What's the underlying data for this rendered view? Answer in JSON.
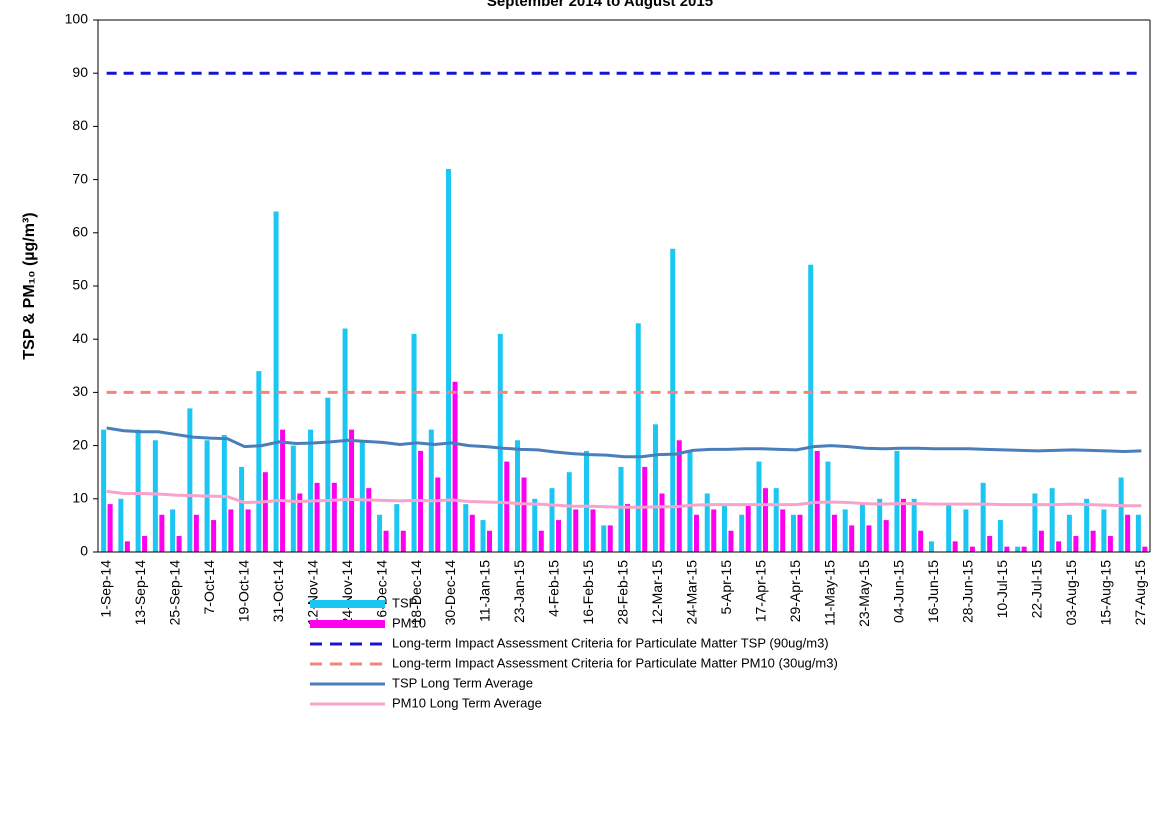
{
  "chart_data": {
    "type": "bar",
    "title": "September 2014 to August 2015",
    "y_label": "TSP & PM₁₀ (µg/m³)",
    "categories": [
      "1-Sep-14",
      null,
      "13-Sep-14",
      null,
      "25-Sep-14",
      null,
      "7-Oct-14",
      null,
      "19-Oct-14",
      null,
      "31-Oct-14",
      null,
      "12-Nov-14",
      null,
      "24-Nov-14",
      null,
      "6-Dec-14",
      null,
      "18-Dec-14",
      null,
      "30-Dec-14",
      null,
      "11-Jan-15",
      null,
      "23-Jan-15",
      null,
      "4-Feb-15",
      null,
      "16-Feb-15",
      null,
      "28-Feb-15",
      null,
      "12-Mar-15",
      null,
      "24-Mar-15",
      null,
      "5-Apr-15",
      null,
      "17-Apr-15",
      null,
      "29-Apr-15",
      null,
      "11-May-15",
      null,
      "23-May-15",
      null,
      "04-Jun-15",
      null,
      "16-Jun-15",
      null,
      "28-Jun-15",
      null,
      "10-Jul-15",
      null,
      "22-Jul-15",
      null,
      "03-Aug-15",
      null,
      "15-Aug-15",
      null,
      "27-Aug-15"
    ],
    "ylim": [
      0,
      100
    ],
    "yticks": [
      0,
      10,
      20,
      30,
      40,
      50,
      60,
      70,
      80,
      90,
      100
    ],
    "grid": false,
    "legend": "bottom",
    "series": [
      {
        "name": "TSP",
        "type": "bar",
        "color": "#1cc6f2",
        "values": [
          23,
          10,
          23,
          21,
          8,
          27,
          21,
          22,
          16,
          34,
          64,
          20,
          23,
          29,
          42,
          21,
          7,
          9,
          41,
          23,
          72,
          9,
          6,
          41,
          21,
          10,
          12,
          15,
          19,
          5,
          16,
          43,
          24,
          57,
          19,
          11,
          9,
          7,
          17,
          12,
          7,
          54,
          17,
          8,
          9,
          10,
          19,
          10,
          2,
          9,
          8,
          13,
          6,
          1,
          11,
          12,
          7,
          10,
          8,
          14,
          7
        ]
      },
      {
        "name": "PM10",
        "type": "bar",
        "color": "#ff00ee",
        "values": [
          9,
          2,
          3,
          7,
          3,
          7,
          6,
          8,
          8,
          15,
          23,
          11,
          13,
          13,
          23,
          12,
          4,
          4,
          19,
          14,
          32,
          7,
          4,
          17,
          14,
          4,
          6,
          8,
          8,
          5,
          9,
          16,
          11,
          21,
          7,
          8,
          4,
          9,
          12,
          8,
          7,
          19,
          7,
          5,
          5,
          6,
          10,
          4,
          0,
          2,
          1,
          3,
          1,
          1,
          4,
          2,
          3,
          4,
          3,
          7,
          1
        ]
      },
      {
        "name": "Long-term Impact Assessment Criteria for Particulate Matter TSP (90ug/m3)",
        "type": "line",
        "dash": true,
        "color": "#1414d2",
        "values": [
          90,
          90,
          90,
          90,
          90,
          90,
          90,
          90,
          90,
          90,
          90,
          90,
          90,
          90,
          90,
          90,
          90,
          90,
          90,
          90,
          90,
          90,
          90,
          90,
          90,
          90,
          90,
          90,
          90,
          90,
          90,
          90,
          90,
          90,
          90,
          90,
          90,
          90,
          90,
          90,
          90,
          90,
          90,
          90,
          90,
          90,
          90,
          90,
          90,
          90,
          90,
          90,
          90,
          90,
          90,
          90,
          90,
          90,
          90,
          90,
          90
        ]
      },
      {
        "name": "Long-term Impact Assessment Criteria for Particulate Matter PM10 (30ug/m3)",
        "type": "line",
        "dash": true,
        "color": "#f4857a",
        "values": [
          30,
          30,
          30,
          30,
          30,
          30,
          30,
          30,
          30,
          30,
          30,
          30,
          30,
          30,
          30,
          30,
          30,
          30,
          30,
          30,
          30,
          30,
          30,
          30,
          30,
          30,
          30,
          30,
          30,
          30,
          30,
          30,
          30,
          30,
          30,
          30,
          30,
          30,
          30,
          30,
          30,
          30,
          30,
          30,
          30,
          30,
          30,
          30,
          30,
          30,
          30,
          30,
          30,
          30,
          30,
          30,
          30,
          30,
          30,
          30,
          30
        ]
      },
      {
        "name": "TSP Long Term Average",
        "type": "line",
        "dash": false,
        "color": "#4a7ebb",
        "values": [
          23.3,
          22.8,
          22.6,
          22.6,
          22.1,
          21.6,
          21.4,
          21.3,
          19.8,
          20.0,
          20.7,
          20.4,
          20.5,
          20.7,
          21.0,
          20.8,
          20.6,
          20.2,
          20.5,
          20.2,
          20.5,
          20.0,
          19.8,
          19.5,
          19.3,
          19.2,
          18.8,
          18.5,
          18.3,
          18.2,
          17.9,
          17.9,
          18.3,
          18.4,
          19.1,
          19.3,
          19.3,
          19.4,
          19.4,
          19.3,
          19.2,
          19.8,
          20.0,
          19.8,
          19.5,
          19.4,
          19.5,
          19.5,
          19.4,
          19.4,
          19.4,
          19.3,
          19.2,
          19.1,
          19.0,
          19.1,
          19.2,
          19.1,
          19.0,
          18.9,
          19.0
        ]
      },
      {
        "name": "PM10 Long Term Average",
        "type": "line",
        "dash": false,
        "color": "#f9a3cc",
        "values": [
          11.4,
          11.0,
          11.0,
          10.9,
          10.7,
          10.6,
          10.5,
          10.4,
          9.3,
          9.4,
          9.7,
          9.5,
          9.6,
          9.7,
          9.9,
          9.8,
          9.7,
          9.6,
          9.7,
          9.6,
          9.8,
          9.5,
          9.4,
          9.3,
          9.1,
          9.0,
          8.8,
          8.6,
          8.6,
          8.5,
          8.4,
          8.4,
          8.5,
          8.5,
          8.8,
          8.9,
          8.9,
          8.9,
          8.9,
          8.9,
          8.9,
          9.3,
          9.4,
          9.3,
          9.1,
          9.0,
          9.1,
          9.1,
          9.0,
          9.0,
          9.0,
          9.0,
          8.9,
          8.9,
          8.9,
          8.9,
          9.0,
          8.9,
          8.8,
          8.7,
          8.7
        ]
      }
    ]
  }
}
